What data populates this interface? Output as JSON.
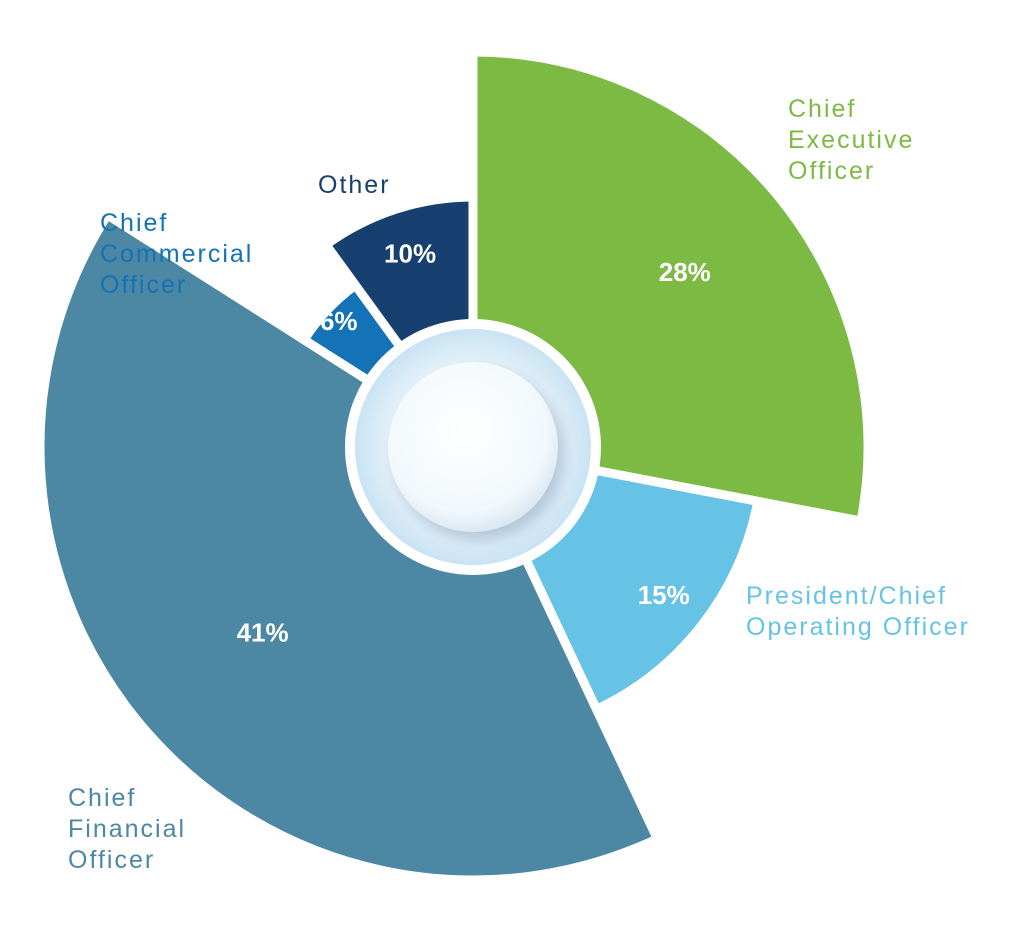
{
  "chart_data": {
    "type": "pie",
    "variant": "polar-area donut (slice radius varies)",
    "slices": [
      {
        "label": "Chief\nExecutive\nOfficer",
        "value": 28,
        "value_label": "28%",
        "color": "#7dba43"
      },
      {
        "label": "President/Chief\nOperating Officer",
        "value": 15,
        "value_label": "15%",
        "color": "#67c3e6"
      },
      {
        "label": "Chief\nFinancial\nOfficer",
        "value": 41,
        "value_label": "41%",
        "color": "#4c87a3"
      },
      {
        "label": "Chief\nCommercial\nOfficer",
        "value": 6,
        "value_label": "6%",
        "color": "#1472b6"
      },
      {
        "label": "Other",
        "value": 10,
        "value_label": "10%",
        "color": "#173f6f"
      }
    ],
    "start": "12 o'clock, clockwise",
    "legend": "none (direct labels)"
  }
}
